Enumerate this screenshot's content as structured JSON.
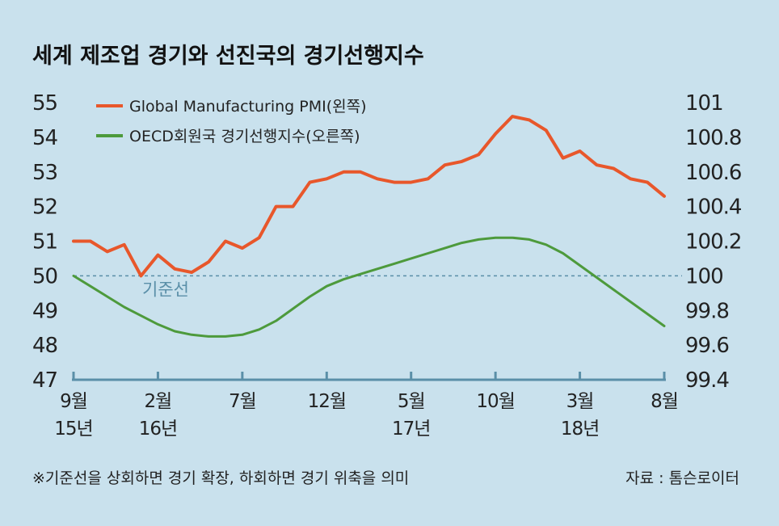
{
  "chart_data": {
    "type": "line",
    "title": "세계 제조업 경기와 선진국의 경기선행지수",
    "x_labels": [
      {
        "month": "9월",
        "year": "15년",
        "index": 0
      },
      {
        "month": "2월",
        "year": "16년",
        "index": 5
      },
      {
        "month": "7월",
        "year": "",
        "index": 10
      },
      {
        "month": "12월",
        "year": "",
        "index": 15
      },
      {
        "month": "5월",
        "year": "17년",
        "index": 20
      },
      {
        "month": "10월",
        "year": "",
        "index": 25
      },
      {
        "month": "3월",
        "year": "18년",
        "index": 30
      },
      {
        "month": "8월",
        "year": "",
        "index": 35
      }
    ],
    "x_count": 36,
    "left_axis": {
      "ticks": [
        "55",
        "54",
        "53",
        "52",
        "51",
        "50",
        "49",
        "48",
        "47"
      ],
      "ylim": [
        47,
        55
      ]
    },
    "right_axis": {
      "ticks": [
        "101",
        "100.8",
        "100.6",
        "100.4",
        "100.2",
        "100",
        "99.8",
        "99.6",
        "99.4"
      ],
      "ylim": [
        99.4,
        101
      ]
    },
    "baseline": {
      "value_left": 50,
      "value_right": 100,
      "label": "기준선"
    },
    "series": [
      {
        "name": "Global Manufacturing PMI(왼쪽)",
        "axis": "left",
        "color": "#e8572b",
        "values": [
          51.0,
          51.0,
          50.7,
          50.9,
          50.0,
          50.6,
          50.2,
          50.1,
          50.4,
          51.0,
          50.8,
          51.1,
          52.0,
          52.0,
          52.7,
          52.8,
          53.0,
          53.0,
          52.8,
          52.7,
          52.7,
          52.8,
          53.2,
          53.3,
          53.5,
          54.1,
          54.6,
          54.5,
          54.2,
          53.4,
          53.6,
          53.2,
          53.1,
          52.8,
          52.7,
          52.3
        ]
      },
      {
        "name": "OECD회원국 경기선행지수(오른쪽)",
        "axis": "right",
        "color": "#4d9a3c",
        "values": [
          100.0,
          99.94,
          99.88,
          99.82,
          99.77,
          99.72,
          99.68,
          99.66,
          99.65,
          99.65,
          99.66,
          99.69,
          99.74,
          99.81,
          99.88,
          99.94,
          99.98,
          100.01,
          100.04,
          100.07,
          100.1,
          100.13,
          100.16,
          100.19,
          100.21,
          100.22,
          100.22,
          100.21,
          100.18,
          100.13,
          100.06,
          99.99,
          99.92,
          99.85,
          99.78,
          99.71
        ]
      }
    ],
    "grid": false,
    "legend_position": "top-left"
  },
  "footnote": "※기준선을 상회하면 경기 확장, 하회하면 경기 위축을 의미",
  "source": "자료 : 톰슨로이터"
}
